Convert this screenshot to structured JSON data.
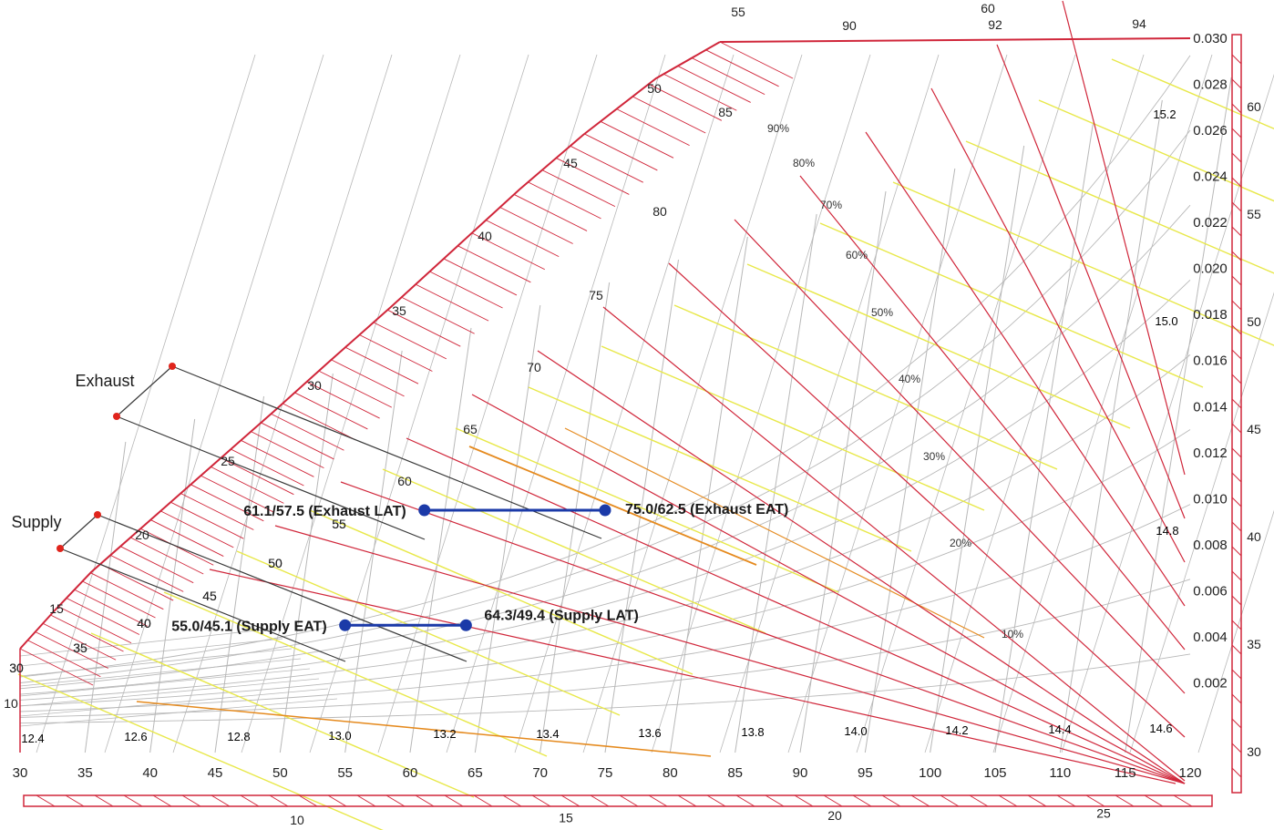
{
  "chart_data": {
    "type": "psychrometric",
    "x_axis": {
      "ticks": [
        30,
        35,
        40,
        45,
        50,
        55,
        60,
        65,
        70,
        75,
        80,
        85,
        90,
        95,
        100,
        105,
        110,
        115,
        120
      ],
      "range": [
        30,
        120
      ]
    },
    "y_axis": {
      "ticks": [
        "0.002",
        "0.004",
        "0.006",
        "0.008",
        "0.010",
        "0.012",
        "0.014",
        "0.016",
        "0.018",
        "0.020",
        "0.022",
        "0.024",
        "0.026",
        "0.028",
        "0.030"
      ],
      "range": [
        0,
        0.03
      ]
    },
    "saturation_scale_labels": [
      "30",
      "35",
      "40",
      "45",
      "50",
      "55",
      "60",
      "65",
      "70",
      "75",
      "80",
      "85",
      "90"
    ],
    "upper_scale_labels": [
      "55",
      "60",
      "92",
      "94"
    ],
    "volume_labels": [
      "12.4",
      "12.6",
      "12.8",
      "13.0",
      "13.2",
      "13.4",
      "13.6",
      "13.8",
      "14.0",
      "14.2",
      "14.4",
      "14.6",
      "14.8",
      "15.0",
      "15.2"
    ],
    "rh_labels": [
      "10%",
      "20%",
      "30%",
      "40%",
      "50%",
      "60%",
      "70%",
      "80%",
      "90%"
    ],
    "right_scale_labels": [
      "30",
      "35",
      "40",
      "45",
      "50",
      "55",
      "60"
    ],
    "bottom_scale_labels": [
      "10",
      "15",
      "20",
      "25"
    ],
    "left_edge_labels": [
      "10",
      "12.4",
      "15",
      "20",
      "25",
      "30",
      "35",
      "40",
      "45",
      "50",
      "55",
      "60",
      "65"
    ],
    "left_edge_small_labels": [
      "30",
      "35",
      "40",
      "45",
      "50",
      "55"
    ],
    "group_labels": {
      "exhaust": "Exhaust",
      "supply": "Supply"
    },
    "points": [
      {
        "label": "75.0/62.5 (Exhaust EAT)",
        "db": 75.0,
        "wb": 62.5,
        "w": 0.0095
      },
      {
        "label": "61.1/57.5 (Exhaust LAT)",
        "db": 61.1,
        "wb": 57.5,
        "w": 0.0095
      },
      {
        "label": "55.0/45.1 (Supply EAT)",
        "db": 55.0,
        "wb": 45.1,
        "w": 0.0045
      },
      {
        "label": "64.3/49.4 (Supply LAT)",
        "db": 64.3,
        "wb": 49.4,
        "w": 0.0045
      }
    ],
    "processes": [
      {
        "name": "Exhaust",
        "from": 0,
        "to": 1
      },
      {
        "name": "Supply",
        "from": 2,
        "to": 3
      }
    ],
    "colors": {
      "grid": "#b8b8b8",
      "enthalpy": "#d0263a",
      "wetbulb": "#e8e84a",
      "orange": "#e58a1e",
      "process": "#1b3aa8",
      "marker": "#e0241c",
      "leader": "#3a3a3a"
    }
  }
}
